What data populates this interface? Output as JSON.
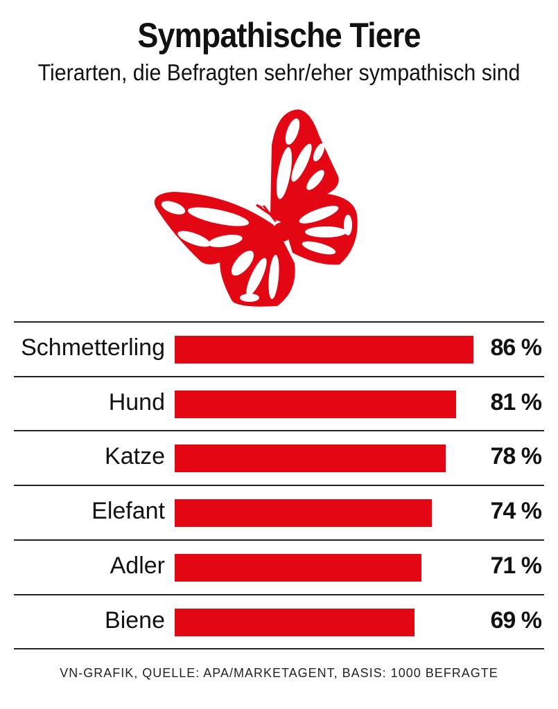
{
  "colors": {
    "accent": "#e30613"
  },
  "icon": "butterfly-icon",
  "chart_data": {
    "type": "bar",
    "orientation": "horizontal",
    "title": "Sympathische Tiere",
    "subtitle": "Tierarten, die Befragten sehr/eher sympathisch sind",
    "categories": [
      "Schmetterling",
      "Hund",
      "Katze",
      "Elefant",
      "Adler",
      "Biene"
    ],
    "values": [
      86,
      81,
      78,
      74,
      71,
      69
    ],
    "value_labels": [
      "86 %",
      "81 %",
      "78 %",
      "74 %",
      "71 %",
      "69 %"
    ],
    "unit": "%",
    "xlim": [
      0,
      100
    ],
    "source": "VN-GRAFIK, QUELLE: APA/MARKETAGENT, BASIS: 1000 BEFRAGTE"
  }
}
